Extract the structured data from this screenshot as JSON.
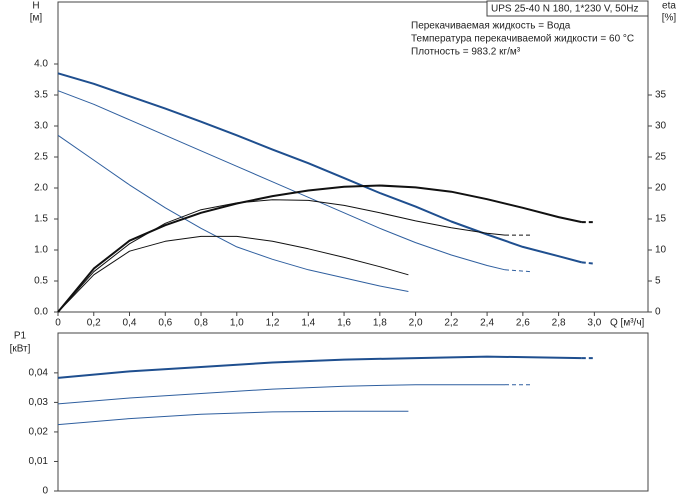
{
  "chart_data": [
    {
      "type": "line",
      "y_label": "H",
      "y_unit": "[м]",
      "y2_label": "eta",
      "y2_unit": "[%]",
      "x_label": "Q [м³/ч]",
      "info": [
        "UPS 25-40 N 180, 1*230 V, 50Hz",
        "Перекачиваемая жидкость = Вода",
        "Температура перекачиваемой жидкости = 60 °C",
        "Плотность = 983.2 кг/м³"
      ],
      "xlim": [
        0,
        3.3
      ],
      "ylim": [
        0,
        5
      ],
      "y2lim": [
        0,
        50
      ],
      "xticks": [
        0,
        {
          "value": 0.2,
          "label": "0,2"
        },
        {
          "value": 0.4,
          "label": "0,4"
        },
        {
          "value": 0.6,
          "label": "0,6"
        },
        {
          "value": 0.8,
          "label": "0,8"
        },
        {
          "value": 1.0,
          "label": "1,0"
        },
        {
          "value": 1.2,
          "label": "1,2"
        },
        {
          "value": 1.4,
          "label": "1,4"
        },
        {
          "value": 1.6,
          "label": "1,6"
        },
        {
          "value": 1.8,
          "label": "1,8"
        },
        {
          "value": 2.0,
          "label": "2,0"
        },
        {
          "value": 2.2,
          "label": "2,2"
        },
        {
          "value": 2.4,
          "label": "2,4"
        },
        {
          "value": 2.6,
          "label": "2,6"
        },
        {
          "value": 2.8,
          "label": "2,8"
        },
        {
          "value": 3.0,
          "label": "3,0"
        }
      ],
      "yticks": [
        {
          "value": 0,
          "label": "0.0"
        },
        0.5,
        {
          "value": 1,
          "label": "1.0"
        },
        1.5,
        {
          "value": 2,
          "label": "2.0"
        },
        2.5,
        {
          "value": 3,
          "label": "3.0"
        },
        3.5,
        {
          "value": 4,
          "label": "4.0"
        }
      ],
      "y2ticks": [
        0,
        5,
        10,
        15,
        20,
        25,
        30,
        35
      ],
      "series": [
        {
          "color": "#1f4f8f",
          "width": 2,
          "x": [
            0,
            0.2,
            0.4,
            0.6,
            0.8,
            1.0,
            1.2,
            1.4,
            1.6,
            1.8,
            2.0,
            2.2,
            2.4,
            2.6,
            2.8,
            2.93
          ],
          "values": [
            3.85,
            3.68,
            3.48,
            3.28,
            3.07,
            2.85,
            2.62,
            2.4,
            2.16,
            1.92,
            1.7,
            1.46,
            1.25,
            1.05,
            0.9,
            0.8
          ]
        },
        {
          "color": "#1f4f8f",
          "width": 2,
          "dash": true,
          "x": [
            2.93,
            3.0
          ],
          "values": [
            0.8,
            0.78
          ]
        },
        {
          "color": "#2f5f9f",
          "width": 1,
          "x": [
            0,
            0.2,
            0.4,
            0.6,
            0.8,
            1.0,
            1.2,
            1.4,
            1.6,
            1.8,
            2.0,
            2.2,
            2.4,
            2.5
          ],
          "values": [
            3.57,
            3.35,
            3.1,
            2.85,
            2.6,
            2.35,
            2.1,
            1.85,
            1.6,
            1.35,
            1.12,
            0.92,
            0.75,
            0.68
          ]
        },
        {
          "color": "#2f5f9f",
          "width": 1,
          "dash": true,
          "x": [
            2.5,
            2.65
          ],
          "values": [
            0.68,
            0.65
          ]
        },
        {
          "color": "#2f5f9f",
          "width": 1,
          "x": [
            0,
            0.2,
            0.4,
            0.6,
            0.8,
            1.0,
            1.2,
            1.4,
            1.6,
            1.8,
            1.96
          ],
          "values": [
            2.85,
            2.45,
            2.05,
            1.68,
            1.35,
            1.05,
            0.85,
            0.68,
            0.55,
            0.42,
            0.33
          ]
        },
        {
          "color": "#111111",
          "width": 2,
          "axis": "y2",
          "x": [
            0,
            0.2,
            0.4,
            0.6,
            0.8,
            1.0,
            1.2,
            1.4,
            1.6,
            1.8,
            2.0,
            2.2,
            2.4,
            2.6,
            2.8,
            2.93
          ],
          "values": [
            0,
            7,
            11.5,
            14,
            16,
            17.5,
            18.7,
            19.6,
            20.2,
            20.4,
            20.1,
            19.4,
            18.2,
            16.8,
            15.3,
            14.5
          ]
        },
        {
          "color": "#111111",
          "width": 2,
          "axis": "y2",
          "dash": true,
          "x": [
            2.93,
            3.0
          ],
          "values": [
            14.5,
            14.5
          ]
        },
        {
          "color": "#111111",
          "width": 1,
          "axis": "y2",
          "x": [
            0,
            0.2,
            0.4,
            0.6,
            0.8,
            1.0,
            1.2,
            1.4,
            1.6,
            1.8,
            2.0,
            2.2,
            2.4,
            2.5
          ],
          "values": [
            0,
            6.5,
            11,
            14.3,
            16.5,
            17.6,
            18.1,
            18,
            17.2,
            16,
            14.7,
            13.6,
            12.7,
            12.4
          ]
        },
        {
          "color": "#111111",
          "width": 1,
          "axis": "y2",
          "dash": true,
          "x": [
            2.5,
            2.65
          ],
          "values": [
            12.4,
            12.4
          ]
        },
        {
          "color": "#111111",
          "width": 1,
          "axis": "y2",
          "x": [
            0,
            0.2,
            0.4,
            0.6,
            0.8,
            1.0,
            1.2,
            1.4,
            1.6,
            1.8,
            1.96
          ],
          "values": [
            0,
            6,
            9.8,
            11.4,
            12.2,
            12.2,
            11.4,
            10.2,
            8.8,
            7.3,
            6
          ]
        }
      ]
    },
    {
      "type": "line",
      "y_label": "P1",
      "y_unit": "[кВт]",
      "xlim": [
        0,
        3.3
      ],
      "ylim": [
        0,
        0.0535
      ],
      "yticks": [
        0,
        {
          "value": 0.01,
          "label": "0,01"
        },
        {
          "value": 0.02,
          "label": "0,02"
        },
        {
          "value": 0.03,
          "label": "0,03"
        },
        {
          "value": 0.04,
          "label": "0,04"
        }
      ],
      "series": [
        {
          "color": "#1f4f8f",
          "width": 2,
          "x": [
            0,
            0.4,
            0.8,
            1.2,
            1.6,
            2.0,
            2.4,
            2.93
          ],
          "values": [
            0.0383,
            0.0405,
            0.042,
            0.0435,
            0.0445,
            0.045,
            0.0455,
            0.045
          ]
        },
        {
          "color": "#1f4f8f",
          "width": 2,
          "dash": true,
          "x": [
            2.93,
            3.0
          ],
          "values": [
            0.045,
            0.045
          ]
        },
        {
          "color": "#2f5f9f",
          "width": 1,
          "x": [
            0,
            0.4,
            0.8,
            1.2,
            1.6,
            2.0,
            2.5
          ],
          "values": [
            0.0295,
            0.0315,
            0.033,
            0.0345,
            0.0355,
            0.036,
            0.036
          ]
        },
        {
          "color": "#2f5f9f",
          "width": 1,
          "dash": true,
          "x": [
            2.5,
            2.65
          ],
          "values": [
            0.036,
            0.036
          ]
        },
        {
          "color": "#2f5f9f",
          "width": 1,
          "x": [
            0,
            0.4,
            0.8,
            1.2,
            1.6,
            1.96
          ],
          "values": [
            0.0225,
            0.0245,
            0.026,
            0.0268,
            0.027,
            0.027
          ]
        }
      ]
    }
  ]
}
